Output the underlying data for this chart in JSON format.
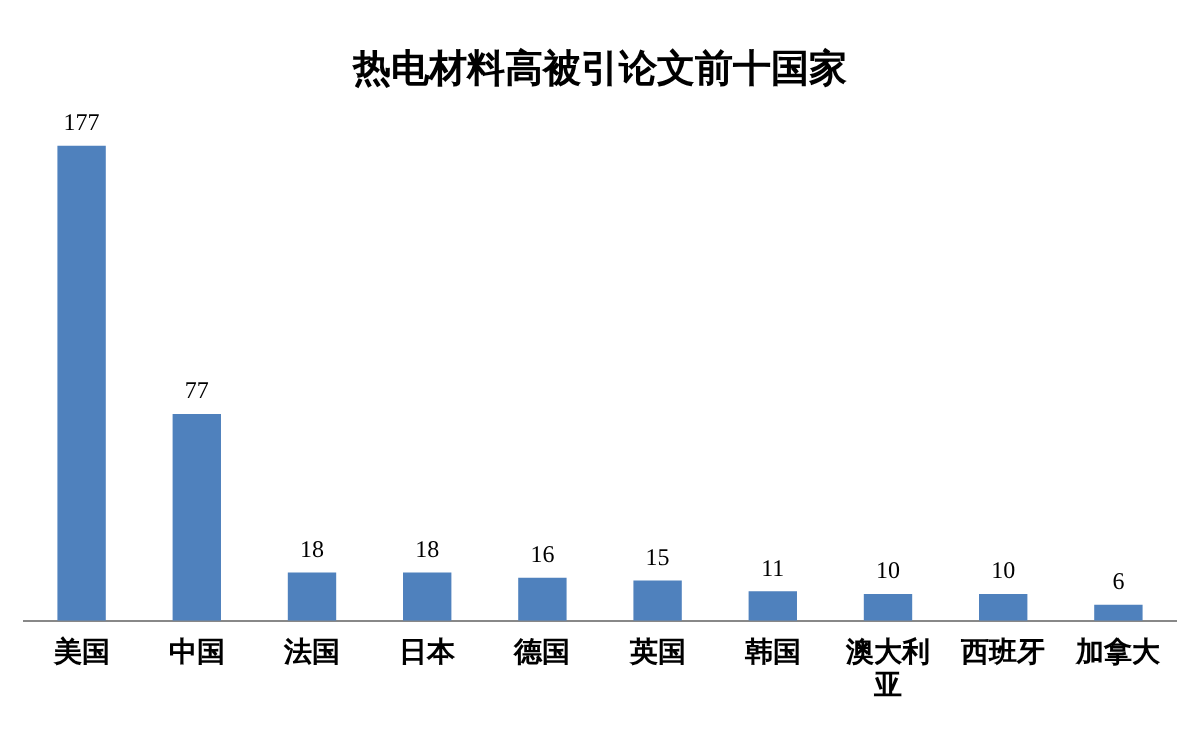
{
  "chart_data": {
    "type": "bar",
    "title": "热电材料高被引论文前十国家",
    "categories": [
      "美国",
      "中国",
      "法国",
      "日本",
      "德国",
      "英国",
      "韩国",
      "澳大利亚",
      "西班牙",
      "加拿大"
    ],
    "values": [
      177,
      77,
      18,
      18,
      16,
      15,
      11,
      10,
      10,
      6
    ],
    "color": "#4f81bd",
    "data_labels": true,
    "tick_labels": "x",
    "grid": false,
    "legend": false
  }
}
